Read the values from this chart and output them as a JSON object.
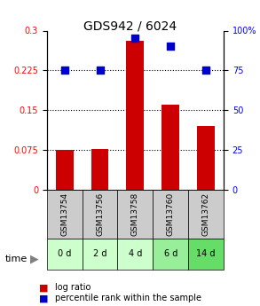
{
  "title": "GDS942 / 6024",
  "categories": [
    "GSM13754",
    "GSM13756",
    "GSM13758",
    "GSM13760",
    "GSM13762"
  ],
  "time_labels": [
    "0 d",
    "2 d",
    "4 d",
    "6 d",
    "14 d"
  ],
  "log_ratios": [
    0.075,
    0.077,
    0.28,
    0.16,
    0.12
  ],
  "percentile_ranks": [
    75,
    75,
    95,
    90,
    75
  ],
  "bar_color": "#cc0000",
  "dot_color": "#0000cc",
  "left_yticks": [
    0,
    0.075,
    0.15,
    0.225,
    0.3
  ],
  "left_yticklabels": [
    "0",
    "0.075",
    "0.15",
    "0.225",
    "0.3"
  ],
  "right_yticks": [
    0,
    25,
    50,
    75,
    100
  ],
  "right_yticklabels": [
    "0",
    "25",
    "50",
    "75",
    "100%"
  ],
  "ylim_left": [
    0,
    0.3
  ],
  "ylim_right": [
    0,
    100
  ],
  "grid_values": [
    0.075,
    0.15,
    0.225
  ],
  "gsm_bg_color": "#cccccc",
  "time_bg_colors": [
    "#ccffcc",
    "#ccffcc",
    "#ccffcc",
    "#99ee99",
    "#66dd66"
  ],
  "legend_items": [
    "log ratio",
    "percentile rank within the sample"
  ]
}
